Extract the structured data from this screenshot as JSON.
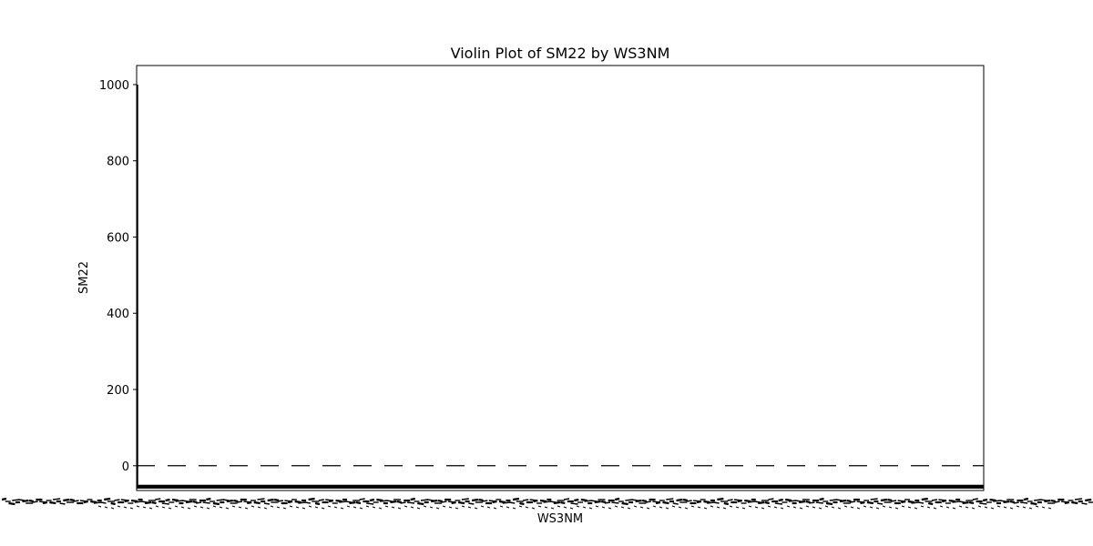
{
  "chart_data": {
    "type": "violin",
    "title": "Violin Plot of SM22 by WS3NM",
    "xlabel": "WS3NM",
    "ylabel": "SM22",
    "ylim": [
      -65,
      1050
    ],
    "yticks": [
      0,
      200,
      400,
      600,
      800,
      1000
    ],
    "ytick_labels": [
      "0",
      "200",
      "400",
      "600",
      "800",
      "1000"
    ],
    "category_count_estimate": 1500,
    "category_labels_legible": false,
    "grid": false,
    "legend": "none",
    "notes_visible": {
      "median_line": 0,
      "dense_baseline_band_min": -60,
      "dense_baseline_band_max": -50,
      "single_tall_spike_value": 1000
    },
    "colors": {
      "axis": "#000000",
      "violin_fill": "#000000",
      "background": "#ffffff"
    }
  }
}
